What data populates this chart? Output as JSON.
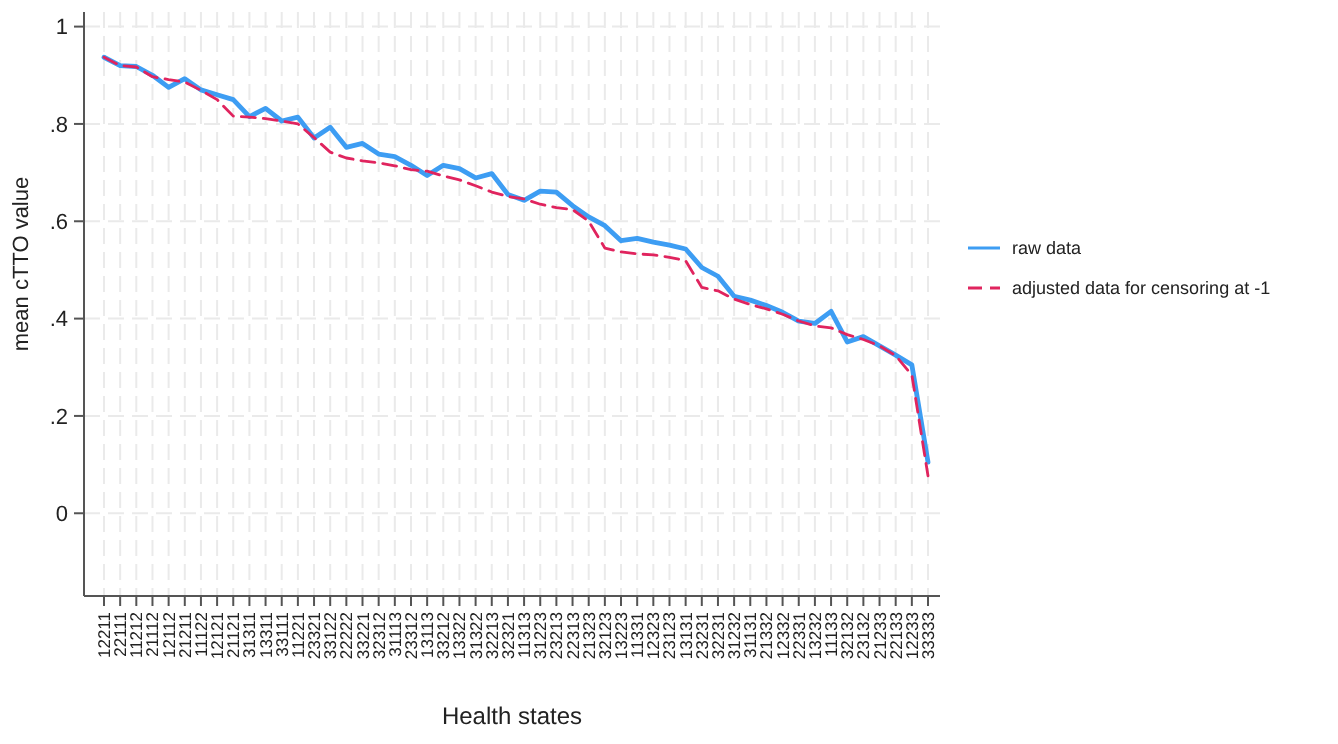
{
  "chart_data": {
    "type": "line",
    "xlabel": "Health states",
    "ylabel": "mean cTTO value",
    "categories": [
      "12211",
      "22111",
      "11212",
      "21112",
      "12112",
      "21211",
      "11122",
      "12121",
      "21121",
      "31311",
      "13311",
      "33111",
      "11221",
      "23321",
      "33122",
      "22222",
      "33221",
      "32312",
      "31113",
      "23312",
      "13113",
      "33212",
      "13322",
      "31322",
      "32213",
      "32321",
      "11313",
      "31223",
      "23213",
      "22313",
      "21323",
      "32123",
      "13223",
      "11331",
      "12323",
      "23123",
      "13131",
      "23231",
      "32231",
      "31232",
      "31131",
      "21332",
      "12332",
      "22331",
      "13232",
      "11133",
      "32132",
      "23132",
      "21233",
      "22133",
      "12233",
      "33333"
    ],
    "series": [
      {
        "name": "raw data",
        "color": "#3d9df3",
        "line_style": "solid",
        "values": [
          0.937,
          0.92,
          0.918,
          0.9,
          0.875,
          0.893,
          0.87,
          0.86,
          0.85,
          0.815,
          0.832,
          0.806,
          0.814,
          0.771,
          0.793,
          0.752,
          0.76,
          0.738,
          0.733,
          0.715,
          0.694,
          0.715,
          0.708,
          0.689,
          0.698,
          0.655,
          0.643,
          0.662,
          0.66,
          0.632,
          0.609,
          0.591,
          0.56,
          0.565,
          0.557,
          0.551,
          0.543,
          0.505,
          0.487,
          0.446,
          0.438,
          0.427,
          0.413,
          0.395,
          0.39,
          0.415,
          0.352,
          0.363,
          0.344,
          0.325,
          0.305,
          0.105
        ]
      },
      {
        "name": "adjusted data for censoring at -1",
        "color": "#e0245e",
        "line_style": "dashed",
        "values": [
          0.937,
          0.92,
          0.917,
          0.897,
          0.891,
          0.886,
          0.869,
          0.85,
          0.816,
          0.814,
          0.811,
          0.806,
          0.8,
          0.772,
          0.742,
          0.73,
          0.724,
          0.72,
          0.714,
          0.706,
          0.703,
          0.693,
          0.685,
          0.673,
          0.66,
          0.651,
          0.646,
          0.635,
          0.628,
          0.624,
          0.6,
          0.545,
          0.537,
          0.533,
          0.531,
          0.526,
          0.519,
          0.464,
          0.457,
          0.44,
          0.429,
          0.42,
          0.409,
          0.395,
          0.385,
          0.381,
          0.367,
          0.357,
          0.344,
          0.324,
          0.284,
          0.077
        ]
      }
    ],
    "ylim": [
      -0.17,
      1.03
    ],
    "yticks": [
      0,
      {
        "value": 0.2,
        "label": ".2"
      },
      {
        "value": 0.4,
        "label": ".4"
      },
      {
        "value": 0.6,
        "label": ".6"
      },
      {
        "value": 0.8,
        "label": ".8"
      },
      1
    ],
    "grid": true,
    "legend": "right",
    "marker": "none"
  }
}
